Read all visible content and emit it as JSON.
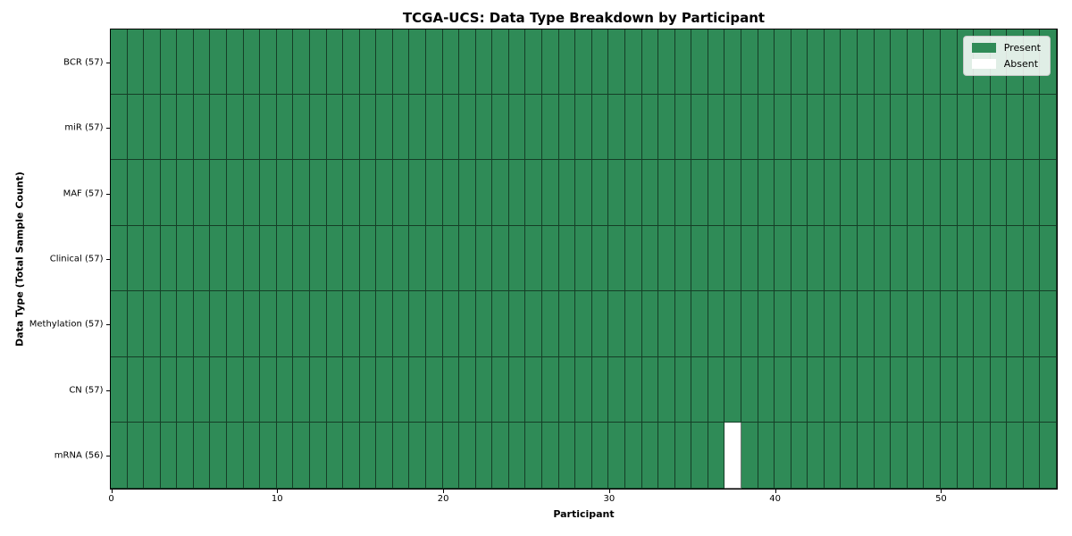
{
  "chart_data": {
    "type": "heatmap",
    "title": "TCGA-UCS: Data Type Breakdown by Participant",
    "xlabel": "Participant",
    "ylabel": "Data Type (Total Sample Count)",
    "n_participants": 57,
    "x_ticks": [
      0,
      10,
      20,
      30,
      40,
      50
    ],
    "rows": [
      {
        "label": "BCR (57)",
        "name": "BCR",
        "count": 57,
        "absent_participants": []
      },
      {
        "label": "miR (57)",
        "name": "miR",
        "count": 57,
        "absent_participants": []
      },
      {
        "label": "MAF (57)",
        "name": "MAF",
        "count": 57,
        "absent_participants": []
      },
      {
        "label": "Clinical (57)",
        "name": "Clinical",
        "count": 57,
        "absent_participants": []
      },
      {
        "label": "Methylation (57)",
        "name": "Methylation",
        "count": 57,
        "absent_participants": []
      },
      {
        "label": "CN (57)",
        "name": "CN",
        "count": 57,
        "absent_participants": []
      },
      {
        "label": "mRNA (56)",
        "name": "mRNA",
        "count": 56,
        "absent_participants": [
          37
        ]
      }
    ],
    "legend": [
      {
        "label": "Present",
        "color": "#2f8b57"
      },
      {
        "label": "Absent",
        "color": "#ffffff"
      }
    ],
    "colors": {
      "present": "#2f8b57",
      "absent": "#ffffff",
      "cell_border": "rgba(0,0,0,0.55)",
      "axis": "#000000",
      "legend_background": "rgba(255,255,255,0.85)"
    }
  }
}
